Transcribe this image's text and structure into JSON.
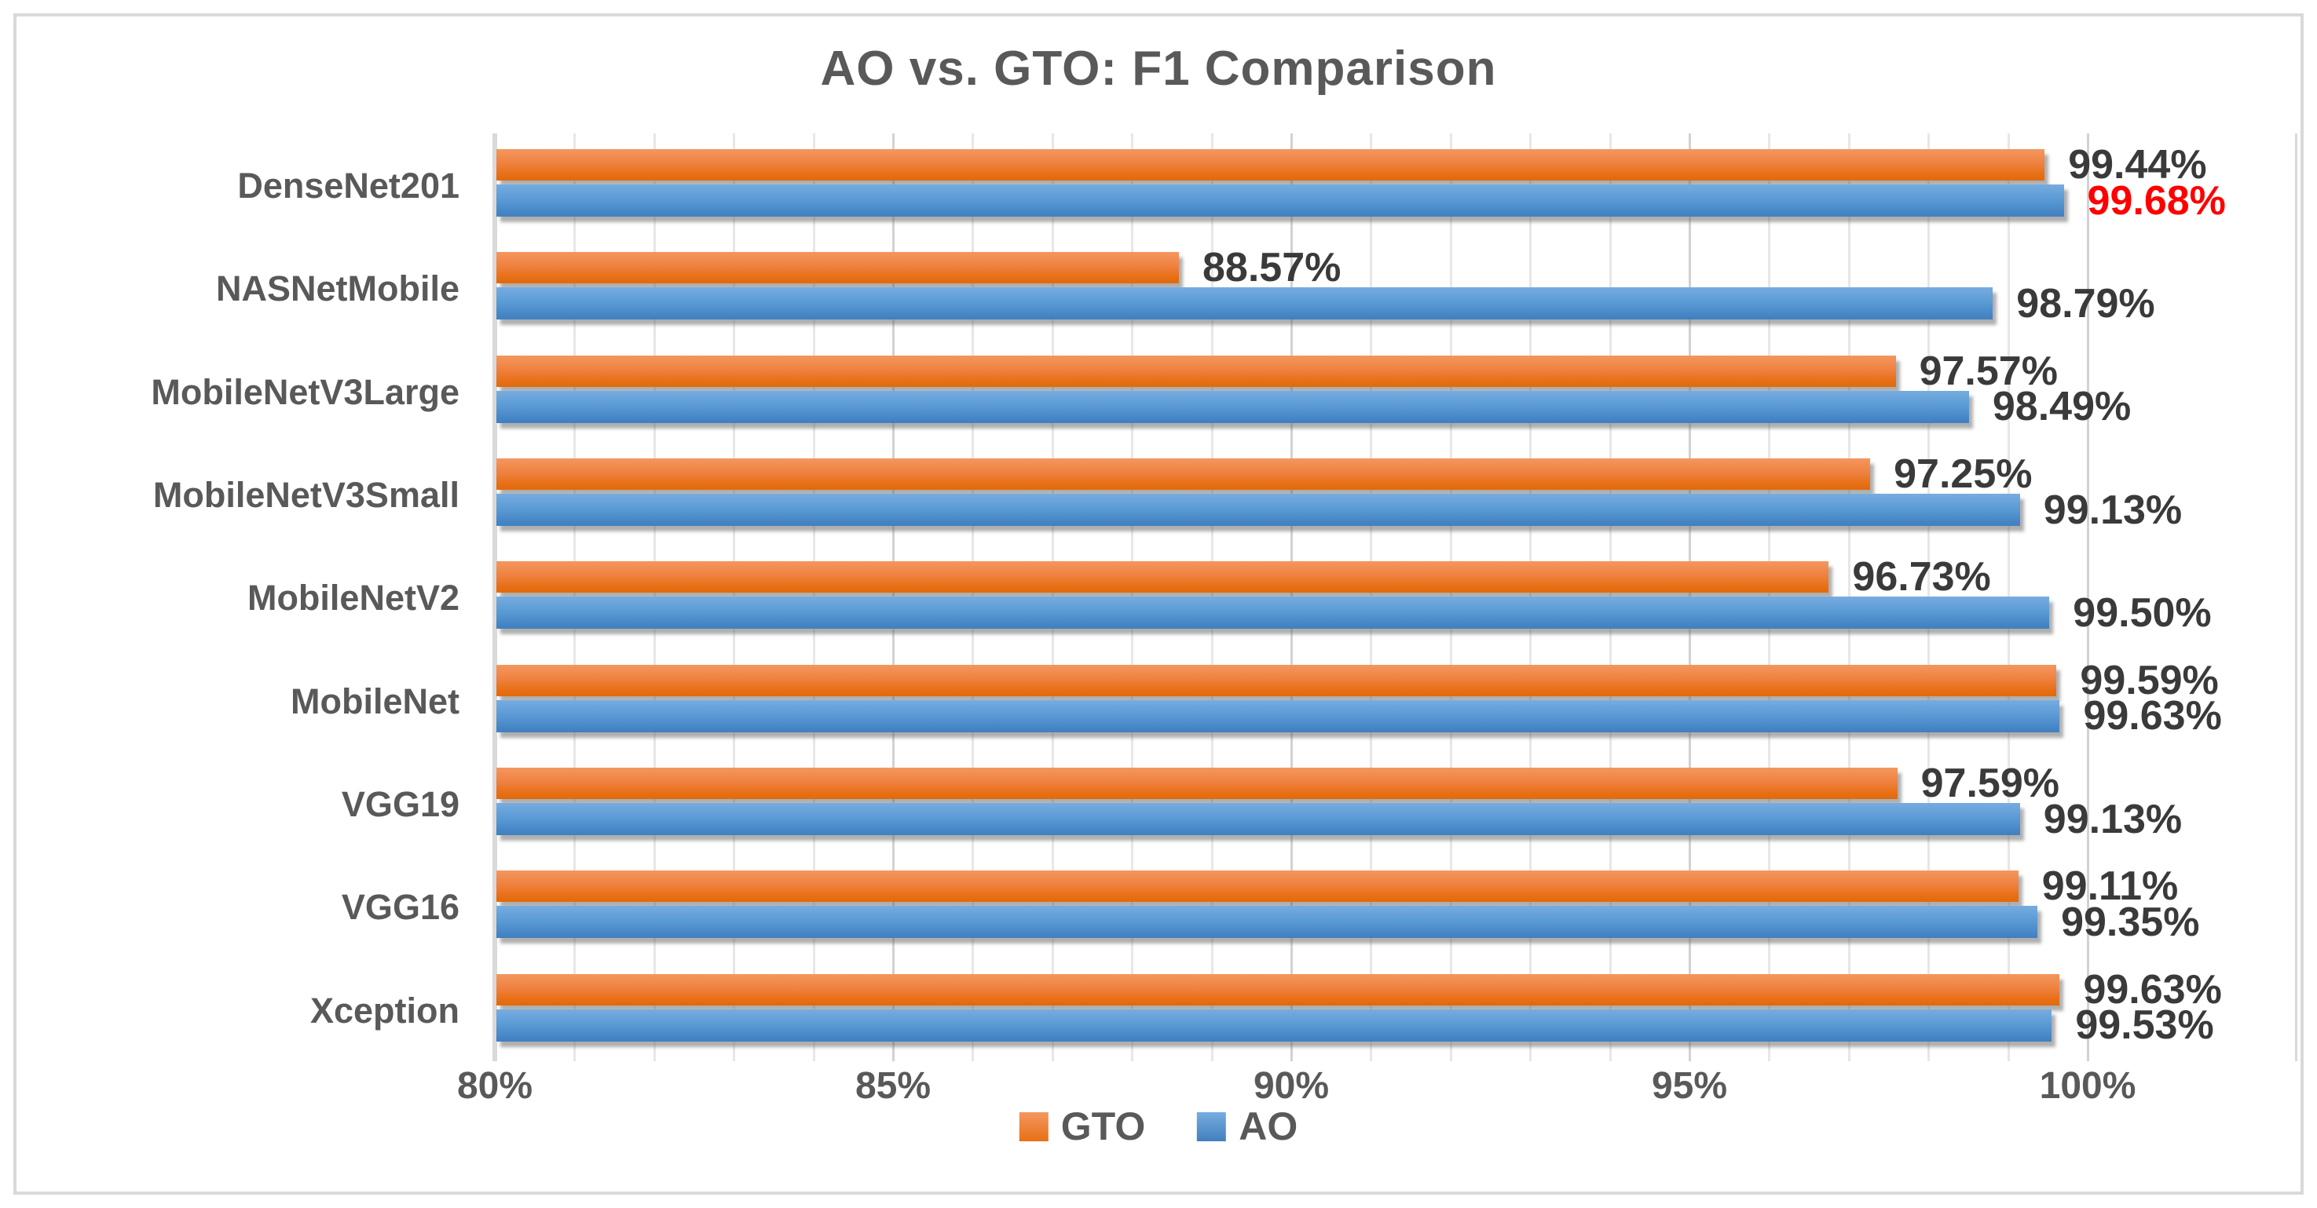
{
  "chart_data": {
    "type": "bar",
    "orientation": "horizontal",
    "title": "AO vs. GTO: F1 Comparison",
    "categories": [
      "DenseNet201",
      "NASNetMobile",
      "MobileNetV3Large",
      "MobileNetV3Small",
      "MobileNetV2",
      "MobileNet",
      "VGG19",
      "VGG16",
      "Xception"
    ],
    "series": [
      {
        "name": "GTO",
        "color": "#ED7D31",
        "values": [
          99.44,
          88.57,
          97.57,
          97.25,
          96.73,
          99.59,
          97.59,
          99.11,
          99.63
        ],
        "value_labels": [
          "99.44%",
          "88.57%",
          "97.57%",
          "97.25%",
          "96.73%",
          "99.59%",
          "97.59%",
          "99.11%",
          "99.63%"
        ]
      },
      {
        "name": "AO",
        "color": "#5B9BD5",
        "values": [
          99.68,
          98.79,
          98.49,
          99.13,
          99.5,
          99.63,
          99.13,
          99.35,
          99.53
        ],
        "value_labels": [
          "99.68%",
          "98.79%",
          "98.49%",
          "99.13%",
          "99.50%",
          "99.63%",
          "99.13%",
          "99.35%",
          "99.53%"
        ]
      }
    ],
    "highlight_label": {
      "series": "AO",
      "category": "DenseNet201",
      "color": "#FF0000"
    },
    "x_axis": {
      "min": 80,
      "max": 100,
      "major_step": 5,
      "minor_step": 1,
      "tick_labels": [
        "80%",
        "85%",
        "90%",
        "95%",
        "100%"
      ]
    },
    "legend": {
      "position": "bottom",
      "entries": [
        "GTO",
        "AO"
      ]
    },
    "grid": true,
    "styles": {
      "value_label_color": "#3A3A3A",
      "axis_text_color": "#595959",
      "grid_color": "#D9D9D9",
      "border_color": "#D9D9D9"
    }
  }
}
